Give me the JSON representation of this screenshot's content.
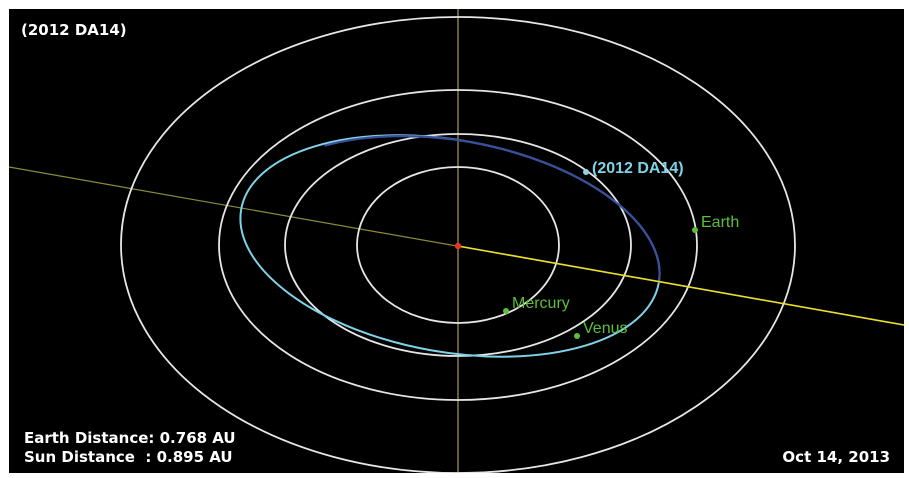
{
  "title": "(2012 DA14)",
  "date": "Oct 14, 2013",
  "readouts": {
    "earth_distance": "Earth Distance: 0.768 AU",
    "sun_distance": "Sun Distance  : 0.895 AU"
  },
  "bodies": {
    "asteroid": "(2012 DA14)",
    "earth": "Earth",
    "mercury": "Mercury",
    "venus": "Venus"
  },
  "colors": {
    "background": "#000000",
    "orbit": "#e6e6e6",
    "asteroid_orbit_near": "#7fd3e8",
    "asteroid_orbit_far": "#3a4f9c",
    "ecliptic_line": "#d8d26a",
    "earth_sun_line": "#eadf2c",
    "vertical_axis": "#c8b878",
    "sun": "#e8352a",
    "planet": "#5cbf3a",
    "asteroid": "#8fd3e6"
  }
}
